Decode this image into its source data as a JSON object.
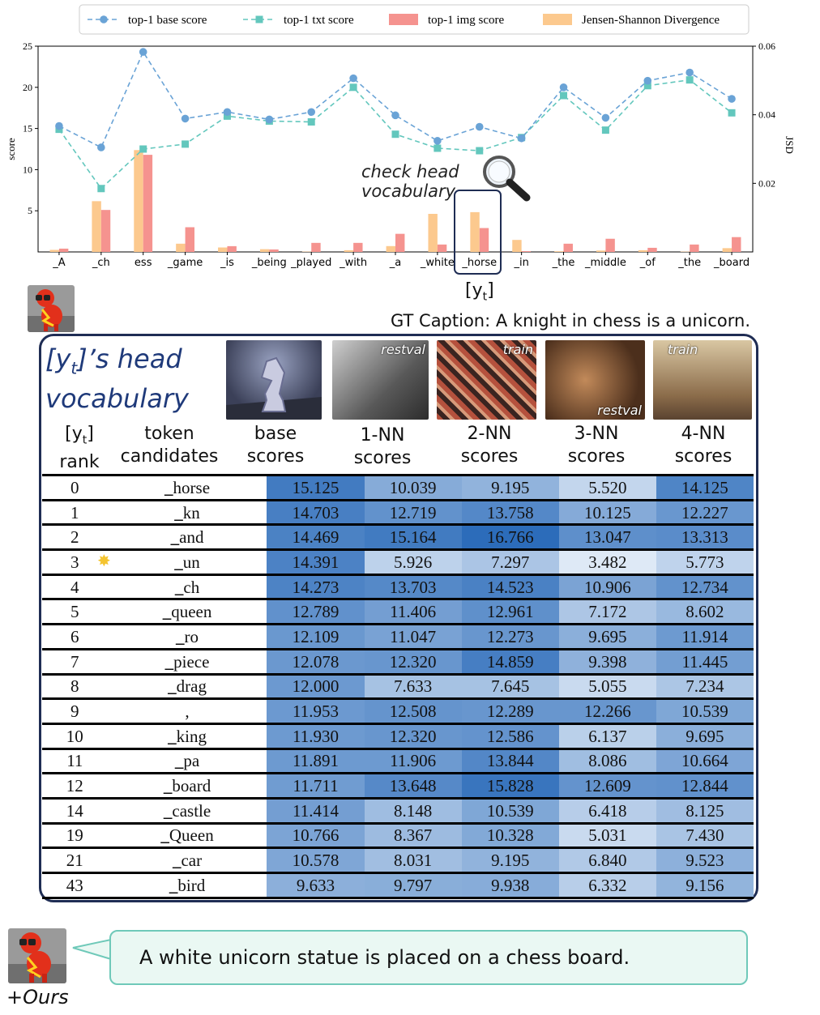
{
  "chart_data": {
    "type": "line+bar",
    "categories": [
      "_A",
      "_ch",
      "ess",
      "_game",
      "_is",
      "_being",
      "_played",
      "_with",
      "_a",
      "_white",
      "_horse",
      "_in",
      "_the",
      "_middle",
      "_of",
      "_the",
      "_board"
    ],
    "series": [
      {
        "name": "top-1 base score",
        "kind": "line",
        "axis": "left",
        "color": "#6aa3d6",
        "values": [
          15.3,
          12.7,
          24.3,
          16.2,
          17.0,
          16.1,
          17.0,
          21.1,
          16.6,
          13.5,
          15.2,
          13.8,
          20.0,
          16.3,
          20.8,
          21.8,
          18.6
        ]
      },
      {
        "name": "top-1 txt score",
        "kind": "line",
        "axis": "left",
        "color": "#63c7bd",
        "values": [
          14.9,
          7.7,
          12.5,
          13.1,
          16.5,
          15.9,
          15.8,
          20.0,
          14.3,
          12.6,
          12.3,
          13.9,
          19.0,
          14.8,
          20.2,
          20.9,
          16.9
        ]
      },
      {
        "name": "top-1 img score",
        "kind": "bar",
        "axis": "left",
        "color": "#f5938f",
        "values": [
          0.4,
          5.1,
          11.8,
          3.0,
          0.7,
          0.3,
          1.1,
          1.1,
          2.2,
          0.9,
          2.9,
          0.1,
          1.0,
          1.6,
          0.5,
          0.9,
          1.8
        ]
      },
      {
        "name": "Jensen-Shannon Divergence",
        "kind": "bar",
        "axis": "right",
        "color": "#fcc98e",
        "values": [
          0.0006,
          0.0148,
          0.0297,
          0.0024,
          0.0013,
          0.0008,
          0.0001,
          0.0005,
          0.0017,
          0.0111,
          0.0116,
          0.0035,
          0.0002,
          0.0004,
          0.0005,
          0.0001,
          0.0011
        ]
      }
    ],
    "ylabel": "score",
    "y2label": "JSD",
    "ylim": [
      0,
      25
    ],
    "y2lim": [
      0,
      0.06
    ],
    "yticks": [
      5,
      10,
      15,
      20,
      25
    ],
    "y2ticks": [
      0.02,
      0.04,
      0.06
    ],
    "legend": "top-center",
    "grid": false
  },
  "annotation": {
    "line1": "check head",
    "line2": "vocabulary",
    "highlight": "_horse"
  },
  "below_label": "[y",
  "below_label_sub": "t",
  "below_label_end": "]",
  "gt_caption": "GT Caption: A knight in chess is a unicorn.",
  "panel": {
    "title_l1_pre": "[y",
    "title_l1_sub": "t",
    "title_l1_post": "]’s head",
    "title_l2": "vocabulary",
    "thumb_labels": [
      "restval",
      "train",
      "restval",
      "train"
    ],
    "headers": {
      "rank_l1": "[y",
      "rank_sub": "t",
      "rank_l1_end": "]",
      "rank_l2": "rank",
      "tok_l1": "token",
      "tok_l2": "candidates",
      "base_l1": "base",
      "base_l2": "scores",
      "nn1_l1": "1-NN",
      "nn1_l2": "scores",
      "nn2_l1": "2-NN",
      "nn2_l2": "scores",
      "nn3_l1": "3-NN",
      "nn3_l2": "scores",
      "nn4_l1": "4-NN",
      "nn4_l2": "scores"
    },
    "rows": [
      {
        "rank": "0",
        "token": "horse",
        "s": [
          "15.125",
          "10.039",
          "9.195",
          "5.520",
          "14.125"
        ]
      },
      {
        "rank": "1",
        "token": "kn",
        "s": [
          "14.703",
          "12.719",
          "13.758",
          "10.125",
          "12.227"
        ]
      },
      {
        "rank": "2",
        "token": "and",
        "s": [
          "14.469",
          "15.164",
          "16.766",
          "13.047",
          "13.313"
        ]
      },
      {
        "rank": "3",
        "token": "un",
        "star": true,
        "s": [
          "14.391",
          "5.926",
          "7.297",
          "3.482",
          "5.773"
        ]
      },
      {
        "rank": "4",
        "token": "ch",
        "s": [
          "14.273",
          "13.703",
          "14.523",
          "10.906",
          "12.734"
        ]
      },
      {
        "rank": "5",
        "token": "queen",
        "s": [
          "12.789",
          "11.406",
          "12.961",
          "7.172",
          "8.602"
        ]
      },
      {
        "rank": "6",
        "token": "ro",
        "s": [
          "12.109",
          "11.047",
          "12.273",
          "9.695",
          "11.914"
        ]
      },
      {
        "rank": "7",
        "token": "piece",
        "s": [
          "12.078",
          "12.320",
          "14.859",
          "9.398",
          "11.445"
        ]
      },
      {
        "rank": "8",
        "token": "drag",
        "s": [
          "12.000",
          "7.633",
          "7.645",
          "5.055",
          "7.234"
        ]
      },
      {
        "rank": "9",
        "token": ",",
        "nounder": true,
        "s": [
          "11.953",
          "12.508",
          "12.289",
          "12.266",
          "10.539"
        ]
      },
      {
        "rank": "10",
        "token": "king",
        "s": [
          "11.930",
          "12.320",
          "12.586",
          "6.137",
          "9.695"
        ]
      },
      {
        "rank": "11",
        "token": "pa",
        "s": [
          "11.891",
          "11.906",
          "13.844",
          "8.086",
          "10.664"
        ]
      },
      {
        "rank": "12",
        "token": "board",
        "s": [
          "11.711",
          "13.648",
          "15.828",
          "12.609",
          "12.844"
        ]
      },
      {
        "rank": "14",
        "token": "castle",
        "s": [
          "11.414",
          "8.148",
          "10.539",
          "6.418",
          "8.125"
        ]
      },
      {
        "rank": "19",
        "token": "Queen",
        "s": [
          "10.766",
          "8.367",
          "10.328",
          "5.031",
          "7.430"
        ]
      },
      {
        "rank": "21",
        "token": "car",
        "s": [
          "10.578",
          "8.031",
          "9.195",
          "6.840",
          "9.523"
        ]
      },
      {
        "rank": "43",
        "token": "bird",
        "s": [
          "9.633",
          "9.797",
          "9.938",
          "6.332",
          "9.156"
        ]
      }
    ]
  },
  "ours_caption": "A white unicorn statue is placed on a chess board.",
  "ours_label": "+Ours",
  "colors": {
    "panel_border": "#1f2d54",
    "title": "#1f3a7a",
    "bubble_border": "#6fc9b9",
    "bubble_fill": "#eaf8f3"
  }
}
